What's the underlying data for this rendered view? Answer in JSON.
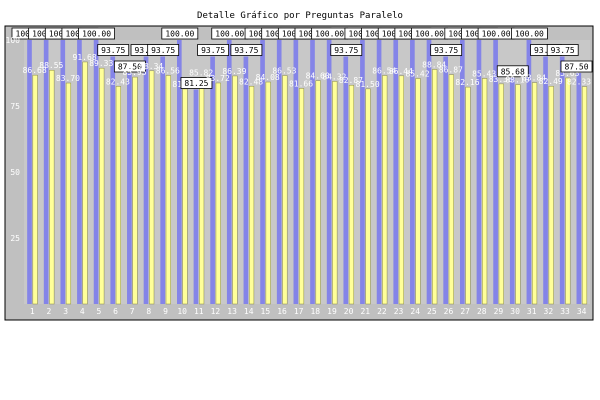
{
  "chart_data": {
    "type": "bar",
    "title": "Detalle Gráfico por Preguntas Paralelo",
    "xlabel": "",
    "ylabel": "",
    "ylim": [
      0,
      100
    ],
    "yticks": [
      25,
      50,
      75,
      100
    ],
    "grid": false,
    "legend": "none",
    "categories": [
      "1",
      "2",
      "3",
      "4",
      "5",
      "6",
      "7",
      "8",
      "9",
      "10",
      "11",
      "12",
      "13",
      "14",
      "15",
      "16",
      "17",
      "18",
      "19",
      "20",
      "21",
      "22",
      "23",
      "24",
      "25",
      "26",
      "27",
      "28",
      "29",
      "30",
      "31",
      "32",
      "33",
      "34"
    ],
    "series": [
      {
        "values": [
          100,
          100,
          100,
          100,
          100,
          93.75,
          87.5,
          93.75,
          93.75,
          100,
          81.25,
          93.75,
          100,
          93.75,
          100,
          100,
          100,
          100,
          100,
          93.75,
          100,
          100,
          100,
          100,
          100,
          93.75,
          100,
          100,
          100,
          85.68,
          100,
          93.75,
          93.75,
          87.5
        ],
        "labels": [
          "100.00",
          "100.00",
          "100.00",
          "100.00",
          "100.00",
          "93.75",
          "87.50",
          "93.75",
          "93.75",
          "100.00",
          "81.25",
          "93.75",
          "100.00",
          "93.75",
          "100.00",
          "100.00",
          "100.00",
          "100.00",
          "100.00",
          "93.75",
          "100.00",
          "100.00",
          "100.00",
          "100.00",
          "100.00",
          "93.75",
          "100.00",
          "100.00",
          "100.00",
          "85.68",
          "100.00",
          "93.75",
          "93.75",
          "87.50"
        ]
      },
      {
        "values": [
          86.68,
          88.55,
          83.7,
          91.68,
          89.33,
          82.43,
          85.95,
          88.34,
          86.56,
          81.46,
          85.82,
          83.72,
          86.39,
          82.48,
          84.08,
          86.53,
          81.66,
          84.6,
          84.32,
          82.87,
          81.5,
          86.54,
          86.44,
          85.42,
          88.84,
          86.87,
          82.16,
          85.43,
          83.38,
          83.1,
          83.84,
          82.49,
          85.63,
          82.33
        ],
        "labels": [
          "86.68",
          "88.55",
          "83.70",
          "91.68",
          "89.33",
          "82.43",
          "85.95",
          "88.34",
          "86.56",
          "81.46",
          "85.82",
          "83.72",
          "86.39",
          "82.48",
          "84.08",
          "86.53",
          "81.66",
          "84.60",
          "84.32",
          "82.87",
          "81.50",
          "86.54",
          "86.44",
          "85.42",
          "88.84",
          "86.87",
          "82.16",
          "85.43",
          "83.38",
          "83.10",
          "83.84",
          "82.49",
          "85.63",
          "82.33"
        ]
      }
    ],
    "colors": {
      "frame_bg": "#c0c0c0",
      "plot_bg": "#c8c8c8",
      "series_1": "#8484e8",
      "series_2": "#ffff99",
      "boxed_label_bg": "#ffffff",
      "boxed_label_text": "#000000",
      "free_label_text": "#ffffff",
      "axis_text": "#ffffff",
      "title_text": "#000000"
    }
  }
}
